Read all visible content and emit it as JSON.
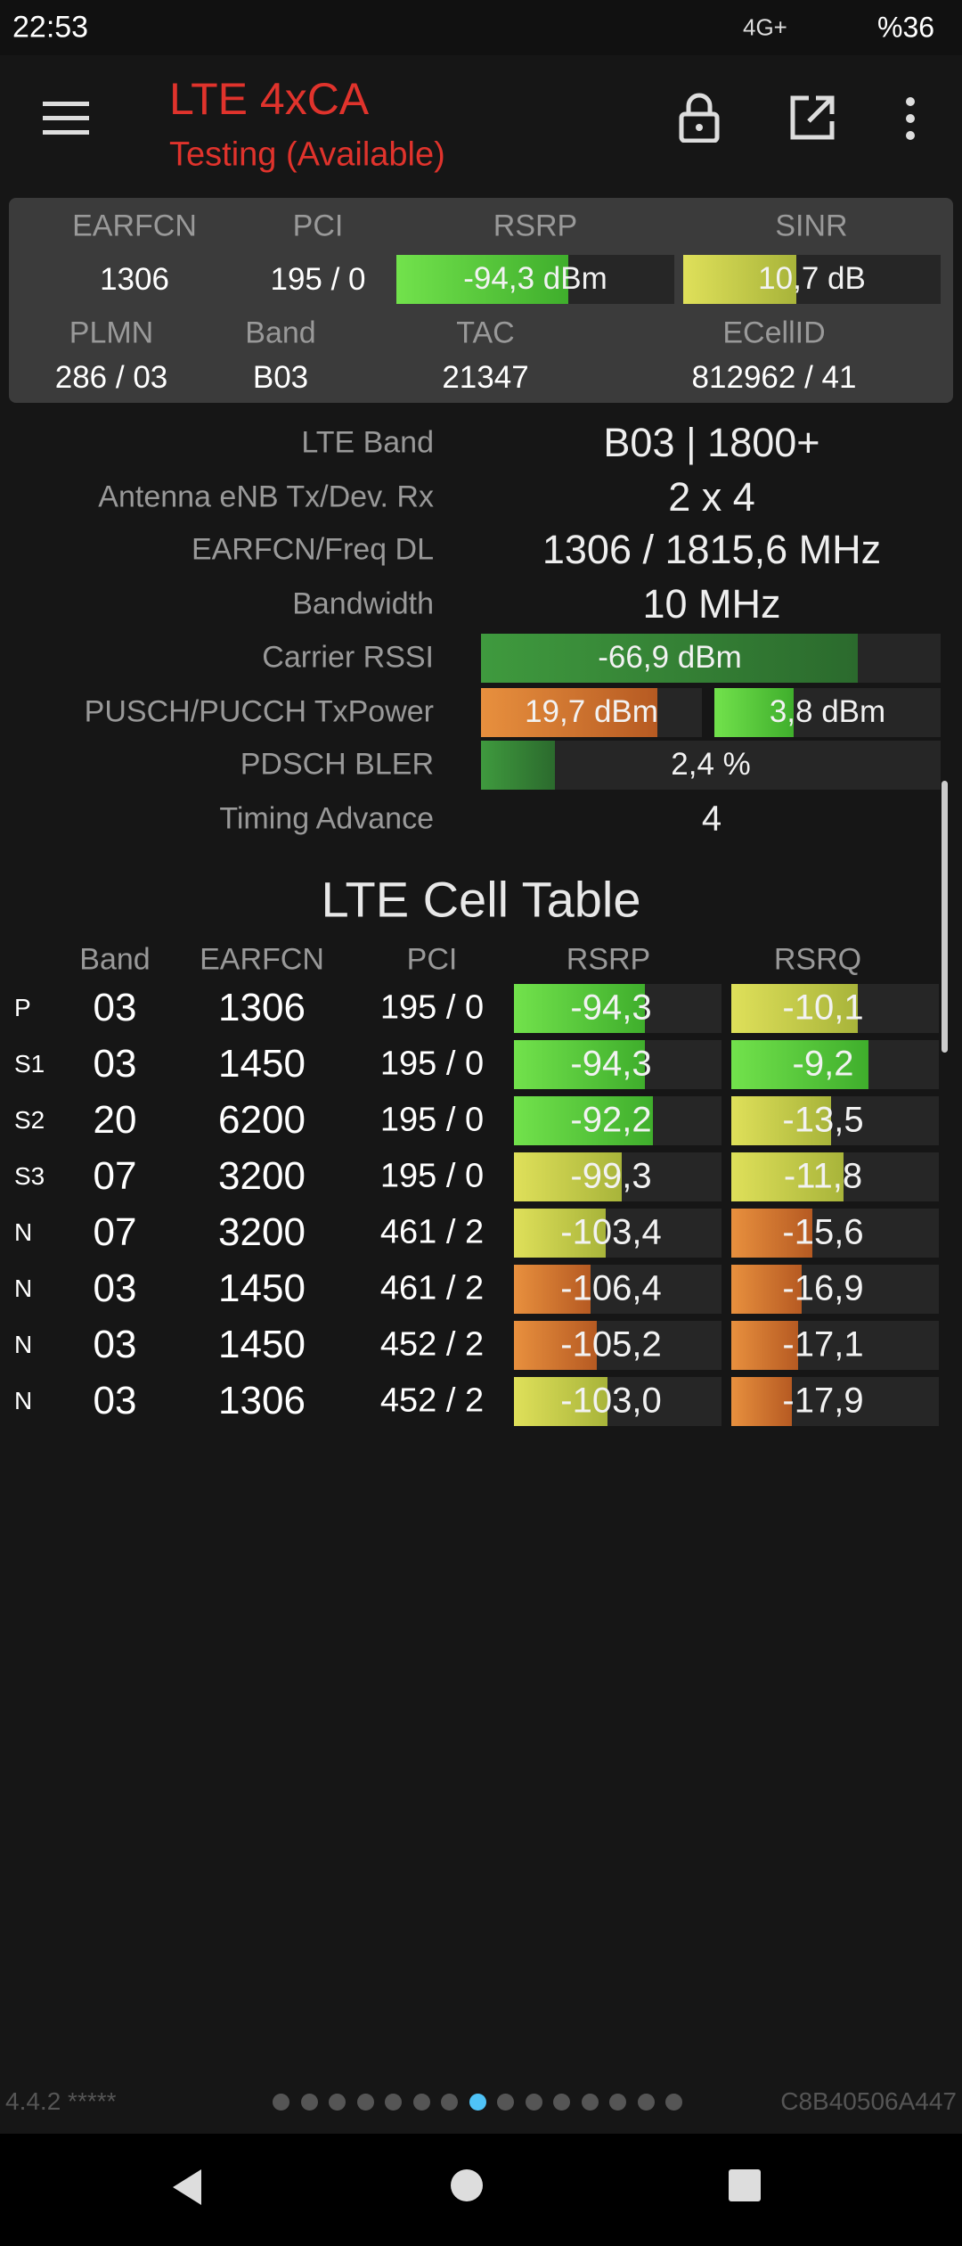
{
  "status_bar": {
    "time": "22:53",
    "network": "4G+",
    "battery": "%36"
  },
  "header": {
    "title": "LTE 4xCA",
    "subtitle": "Testing (Available)"
  },
  "summary": {
    "labels_top": [
      "EARFCN",
      "PCI",
      "RSRP",
      "SINR"
    ],
    "values_top": [
      "1306",
      "195 / 0",
      "-94,3 dBm",
      "10,7 dB"
    ],
    "labels_bottom": [
      "PLMN",
      "Band",
      "TAC",
      "ECellID"
    ],
    "values_bottom": [
      "286 / 03",
      "B03",
      "21347",
      "812962 / 41"
    ]
  },
  "details": [
    {
      "label": "LTE Band",
      "values": [
        "B03 | 1800+"
      ]
    },
    {
      "label": "Antenna eNB Tx/Dev. Rx",
      "values": [
        "2 x 4"
      ]
    },
    {
      "label": "EARFCN/Freq DL",
      "values": [
        "1306 / 1815,6 MHz"
      ]
    },
    {
      "label": "Bandwidth",
      "values": [
        "10 MHz"
      ]
    },
    {
      "label": "Carrier RSSI",
      "values": [
        "-66,9 dBm"
      ]
    },
    {
      "label": "PUSCH/PUCCH TxPower",
      "values": [
        "19,7 dBm",
        "3,8 dBm"
      ]
    },
    {
      "label": "PDSCH BLER",
      "values": [
        "2,4 %"
      ]
    },
    {
      "label": "Timing Advance",
      "values": [
        "4"
      ]
    }
  ],
  "cell_table": {
    "title": "LTE Cell Table",
    "columns": [
      "Band",
      "EARFCN",
      "PCI",
      "RSRP",
      "RSRQ"
    ],
    "rows": [
      {
        "tag": "P",
        "cells": [
          "03",
          "1306",
          "195 / 0",
          "-94,3",
          "-10,1"
        ]
      },
      {
        "tag": "S1",
        "cells": [
          "03",
          "1450",
          "195 / 0",
          "-94,3",
          "-9,2"
        ]
      },
      {
        "tag": "S2",
        "cells": [
          "20",
          "6200",
          "195 / 0",
          "-92,2",
          "-13,5"
        ]
      },
      {
        "tag": "S3",
        "cells": [
          "07",
          "3200",
          "195 / 0",
          "-99,3",
          "-11,8"
        ]
      },
      {
        "tag": "N",
        "cells": [
          "07",
          "3200",
          "461 / 2",
          "-103,4",
          "-15,6"
        ]
      },
      {
        "tag": "N",
        "cells": [
          "03",
          "1450",
          "461 / 2",
          "-106,4",
          "-16,9"
        ]
      },
      {
        "tag": "N",
        "cells": [
          "03",
          "1450",
          "452 / 2",
          "-105,2",
          "-17,1"
        ]
      },
      {
        "tag": "N",
        "cells": [
          "03",
          "1306",
          "452 / 2",
          "-103,0",
          "-17,9"
        ]
      }
    ]
  },
  "footer": {
    "version": "4.4.2 *****",
    "device_id": "C8B40506A447"
  }
}
